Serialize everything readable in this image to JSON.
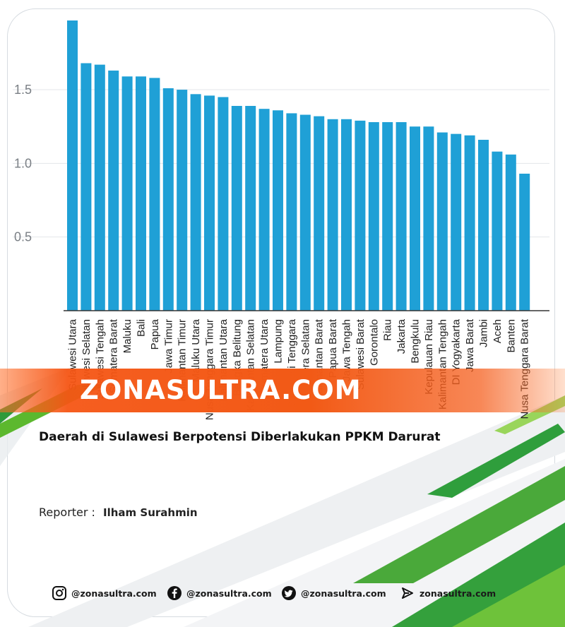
{
  "chart_data": {
    "type": "bar",
    "categories": [
      "Sulawesi Utara",
      "Sulawesi Selatan",
      "Sulawesi Tengah",
      "Sumatera Barat",
      "Maluku",
      "Bali",
      "Papua",
      "Jawa Timur",
      "Kalimantan Timur",
      "Maluku Utara",
      "Nusa Tenggara Timur",
      "Kalimantan Utara",
      "Bangka Belitung",
      "Kalimantan Selatan",
      "Sumatera Utara",
      "Lampung",
      "Sulawesi Tenggara",
      "Sumatera Selatan",
      "Kalimantan Barat",
      "Papua Barat",
      "Jawa Tengah",
      "Sulawesi Barat",
      "Gorontalo",
      "Riau",
      "Jakarta",
      "Bengkulu",
      "Kepulauan Riau",
      "Kalimantan Tengah",
      "DI Yogyakarta",
      "Jawa Barat",
      "Jambi",
      "Aceh",
      "Banten",
      "Nusa Tenggara Barat"
    ],
    "values": [
      1.97,
      1.68,
      1.67,
      1.63,
      1.59,
      1.59,
      1.58,
      1.51,
      1.5,
      1.47,
      1.46,
      1.45,
      1.39,
      1.39,
      1.37,
      1.36,
      1.34,
      1.33,
      1.32,
      1.3,
      1.3,
      1.29,
      1.28,
      1.28,
      1.28,
      1.25,
      1.25,
      1.21,
      1.2,
      1.19,
      1.16,
      1.08,
      1.06,
      0.93
    ],
    "yticks": [
      "0.5",
      "1.0",
      "1.5"
    ],
    "ylim": [
      0,
      1.97
    ],
    "grid": true,
    "bar_color": "#1fa0d6"
  },
  "banner": {
    "text": "ZONASULTRA.COM",
    "color": "#f25a16"
  },
  "headline": "Daerah di Sulawesi Berpotensi Diberlakukan PPKM Darurat",
  "reporter": {
    "label": "Reporter :",
    "name": "Ilham Surahmin"
  },
  "social": [
    {
      "icon": "instagram-icon",
      "handle": "@zonasultra.com"
    },
    {
      "icon": "facebook-icon",
      "handle": "@zonasultra.com"
    },
    {
      "icon": "twitter-icon",
      "handle": "@zonasultra.com"
    },
    {
      "icon": "website-icon",
      "handle": "zonasultra.com"
    }
  ],
  "accent_green": "#5cb82e"
}
